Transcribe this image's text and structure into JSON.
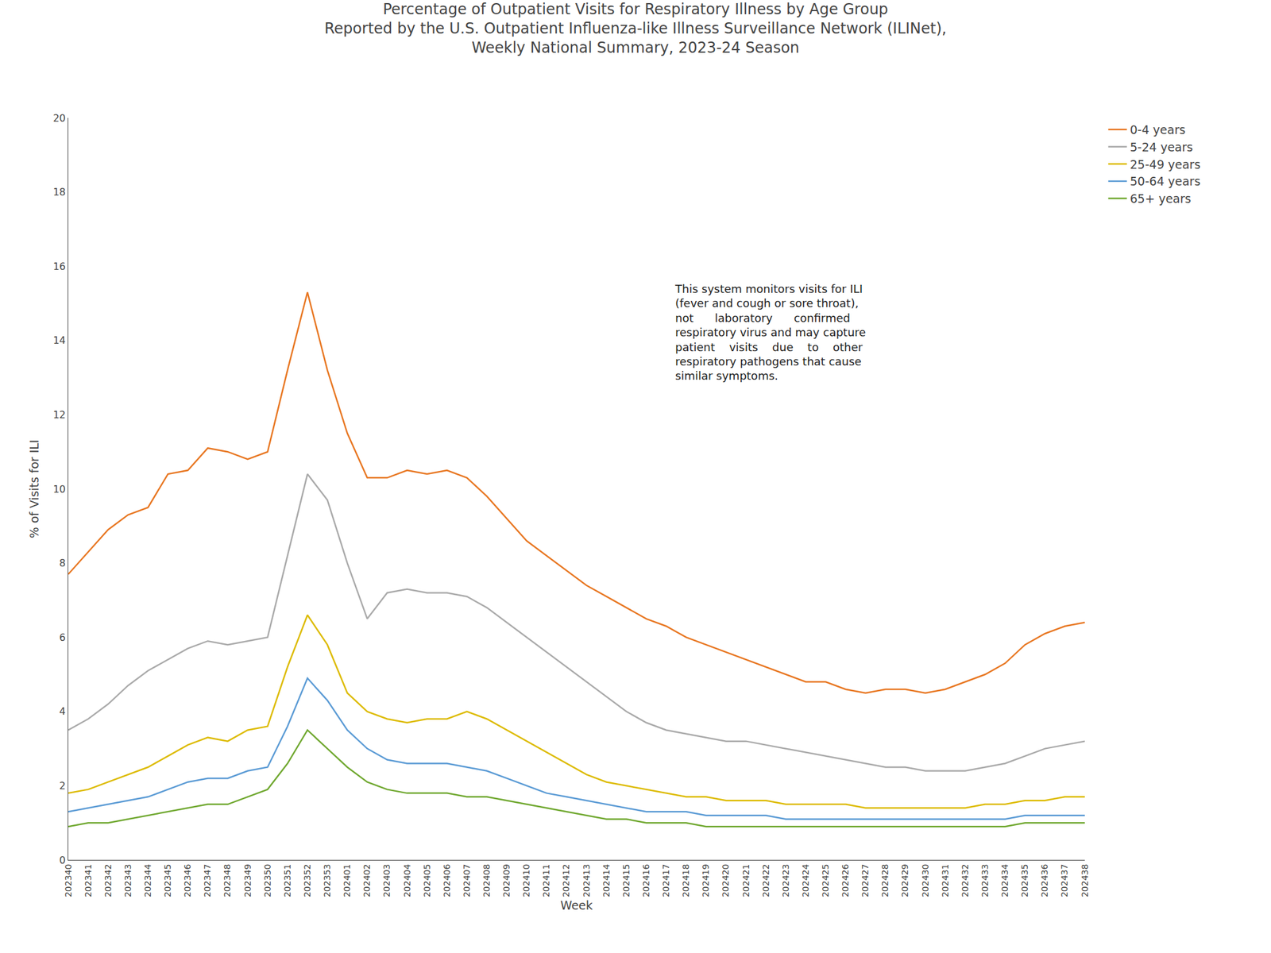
{
  "chart_data": {
    "type": "line",
    "title": "Percentage of Outpatient Visits for Respiratory Illness by Age Group\nReported by the U.S. Outpatient Influenza-like Illness Surveillance Network (ILINet),\nWeekly National Summary, 2023-24 Season",
    "xlabel": "Week",
    "ylabel": "% of Visits for ILI",
    "annotations": [
      "This system monitors visits for ILI\n(fever and cough or sore throat),\nnot      laboratory      confirmed\nrespiratory virus and may capture\npatient    visits    due    to    other\nrespiratory pathogens that cause\nsimilar symptoms."
    ],
    "categories": [
      "202340",
      "202341",
      "202342",
      "202343",
      "202344",
      "202345",
      "202346",
      "202347",
      "202348",
      "202349",
      "202350",
      "202351",
      "202352",
      "202353",
      "202401",
      "202402",
      "202403",
      "202404",
      "202405",
      "202406",
      "202407",
      "202408",
      "202409",
      "202410",
      "202411",
      "202412",
      "202413",
      "202414",
      "202415",
      "202416",
      "202417",
      "202418",
      "202419",
      "202420",
      "202421",
      "202422",
      "202423",
      "202424",
      "202425",
      "202426",
      "202427",
      "202428",
      "202429",
      "202430",
      "202431",
      "202432",
      "202433",
      "202434",
      "202435",
      "202436",
      "202437",
      "202438"
    ],
    "series": [
      {
        "name": "0-4 years",
        "color": "#E87722",
        "values": [
          7.7,
          8.3,
          8.9,
          9.3,
          9.5,
          10.4,
          10.5,
          11.1,
          11.0,
          10.8,
          11.0,
          13.2,
          15.3,
          13.2,
          11.5,
          10.3,
          10.3,
          10.5,
          10.4,
          10.5,
          10.3,
          9.8,
          9.2,
          8.6,
          8.2,
          7.8,
          7.4,
          7.1,
          6.8,
          6.5,
          6.3,
          6.0,
          5.8,
          5.6,
          5.4,
          5.2,
          5.0,
          4.8,
          4.8,
          4.6,
          4.5,
          4.6,
          4.6,
          4.5,
          4.6,
          4.8,
          5.0,
          5.3,
          5.8,
          6.1,
          6.3,
          6.4
        ]
      },
      {
        "name": "5-24 years",
        "color": "#AAAAAA",
        "values": [
          3.5,
          3.8,
          4.2,
          4.7,
          5.1,
          5.4,
          5.7,
          5.9,
          5.8,
          5.9,
          6.0,
          8.2,
          10.4,
          9.7,
          8.0,
          6.5,
          7.2,
          7.3,
          7.2,
          7.2,
          7.1,
          6.8,
          6.4,
          6.0,
          5.6,
          5.2,
          4.8,
          4.4,
          4.0,
          3.7,
          3.5,
          3.4,
          3.3,
          3.2,
          3.2,
          3.1,
          3.0,
          2.9,
          2.8,
          2.7,
          2.6,
          2.5,
          2.5,
          2.4,
          2.4,
          2.4,
          2.5,
          2.6,
          2.8,
          3.0,
          3.1,
          3.2
        ]
      },
      {
        "name": "25-49 years",
        "color": "#DDBB00",
        "values": [
          1.8,
          1.9,
          2.1,
          2.3,
          2.5,
          2.8,
          3.1,
          3.3,
          3.2,
          3.5,
          3.6,
          5.2,
          6.6,
          5.8,
          4.5,
          4.0,
          3.8,
          3.7,
          3.8,
          3.8,
          4.0,
          3.8,
          3.5,
          3.2,
          2.9,
          2.6,
          2.3,
          2.1,
          2.0,
          1.9,
          1.8,
          1.7,
          1.7,
          1.6,
          1.6,
          1.6,
          1.5,
          1.5,
          1.5,
          1.5,
          1.4,
          1.4,
          1.4,
          1.4,
          1.4,
          1.4,
          1.5,
          1.5,
          1.6,
          1.6,
          1.7,
          1.7
        ]
      },
      {
        "name": "50-64 years",
        "color": "#5B9BD5",
        "values": [
          1.3,
          1.4,
          1.5,
          1.6,
          1.7,
          1.9,
          2.1,
          2.2,
          2.2,
          2.4,
          2.5,
          3.6,
          4.9,
          4.3,
          3.5,
          3.0,
          2.7,
          2.6,
          2.6,
          2.6,
          2.5,
          2.4,
          2.2,
          2.0,
          1.8,
          1.7,
          1.6,
          1.5,
          1.4,
          1.3,
          1.3,
          1.3,
          1.2,
          1.2,
          1.2,
          1.2,
          1.1,
          1.1,
          1.1,
          1.1,
          1.1,
          1.1,
          1.1,
          1.1,
          1.1,
          1.1,
          1.1,
          1.1,
          1.2,
          1.2,
          1.2,
          1.2
        ]
      },
      {
        "name": "65+ years",
        "color": "#70A830",
        "values": [
          0.9,
          1.0,
          1.0,
          1.1,
          1.2,
          1.3,
          1.4,
          1.5,
          1.5,
          1.7,
          1.9,
          2.6,
          3.5,
          3.0,
          2.5,
          2.1,
          1.9,
          1.8,
          1.8,
          1.8,
          1.7,
          1.7,
          1.6,
          1.5,
          1.4,
          1.3,
          1.2,
          1.1,
          1.1,
          1.0,
          1.0,
          1.0,
          0.9,
          0.9,
          0.9,
          0.9,
          0.9,
          0.9,
          0.9,
          0.9,
          0.9,
          0.9,
          0.9,
          0.9,
          0.9,
          0.9,
          0.9,
          0.9,
          1.0,
          1.0,
          1.0,
          1.0
        ]
      }
    ],
    "ylim": [
      0,
      20
    ],
    "yticks": [
      0,
      2,
      4,
      6,
      8,
      10,
      12,
      14,
      16,
      18,
      20
    ],
    "grid": false,
    "legend": "right"
  }
}
